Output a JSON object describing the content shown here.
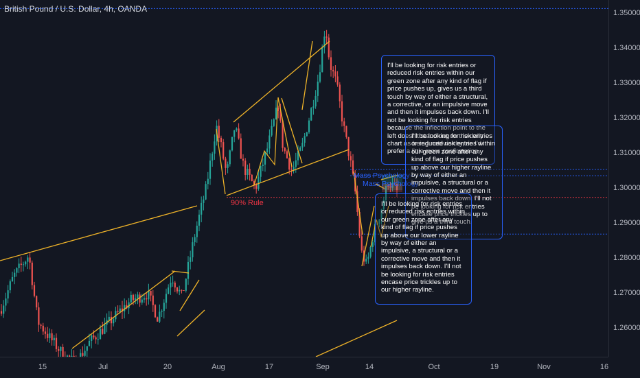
{
  "header": {
    "symbol": "British Pound / U.S. Dollar, 4h, OANDA"
  },
  "chart_data": {
    "type": "candlestick",
    "title": "British Pound / U.S. Dollar, 4h, OANDA",
    "y_ticks": [
      "1.35000",
      "1.34000",
      "1.33000",
      "1.32000",
      "1.31000",
      "1.30000",
      "1.29000",
      "1.28000",
      "1.27000",
      "1.26000"
    ],
    "x_ticks": [
      "15",
      "Jul",
      "20",
      "Aug",
      "17",
      "Sep",
      "14",
      "Oct",
      "19",
      "Nov",
      "16"
    ],
    "ylim": [
      1.2515,
      1.3535
    ],
    "grid": false,
    "annotations": {
      "rule_90": "90% Rule",
      "mass_1": "Mass Psychology",
      "mass_2": "Mass Psychology"
    },
    "notes": [
      "I'll be looking for risk entries or reduced risk entries within our green zone after any kind of flag if price pushes up, gives us a third touch by way of either a structural, a corrective, or an impulsive move and then it impulses back down. I'll not be looking for risk entries because the inflection point to the left doesn't stand out on the daily chart as being noteworthy, so I'd prefer a little more confirmation.",
      "I'll be looking for risk entries or reduced risk entries within our green zone after any kind of flag if price pushes up above our higher rayline by way of either an impulsive, a structural or a corrective move and then it impulses back down. I'll not be looking for risk entries encase price trickles up to give us a third touch.",
      "I'll be looking for risk entries or reduced risk entries within our green zone after any kind of flag if price pushes up above our lower rayline by way of either an impulsive, a structural or a corrective move and then it impulses back down. I'll not be looking for risk entries encase price trickles up to our higher rayline."
    ],
    "horizontal_levels": [
      1.3515,
      1.3055,
      1.3037,
      1.2975,
      1.287
    ],
    "colors": {
      "up": "#26a69a",
      "down": "#ef5350",
      "lines": "#f0b429",
      "note_border": "#2962ff",
      "rule": "#f23645"
    }
  }
}
